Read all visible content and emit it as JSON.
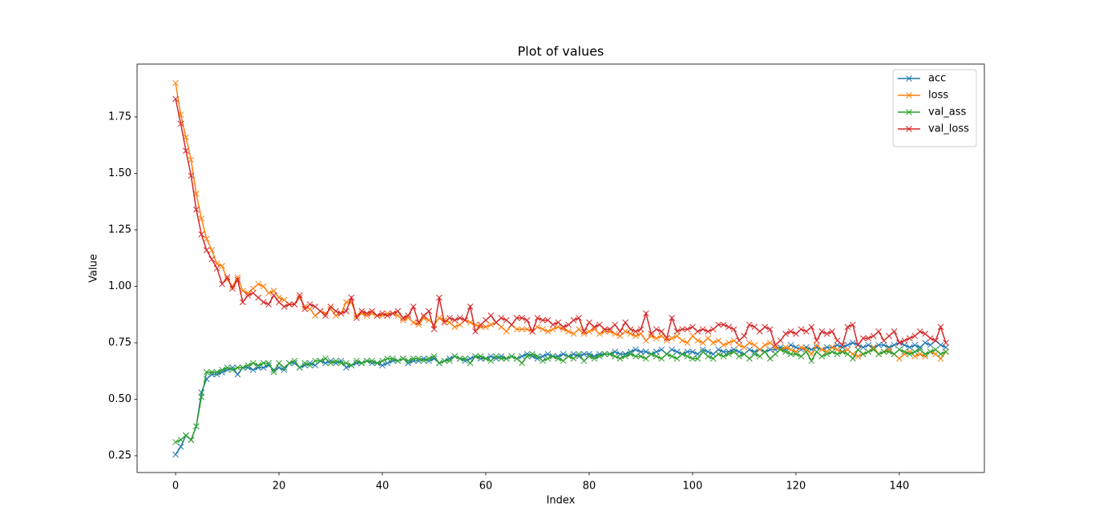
{
  "chart_data": {
    "type": "line",
    "title": "Plot of values",
    "x_label": "Index",
    "y_label": "Value",
    "x": [
      0,
      1,
      2,
      3,
      4,
      5,
      6,
      7,
      8,
      9,
      10,
      11,
      12,
      13,
      14,
      15,
      16,
      17,
      18,
      19,
      20,
      21,
      22,
      23,
      24,
      25,
      26,
      27,
      28,
      29,
      30,
      31,
      32,
      33,
      34,
      35,
      36,
      37,
      38,
      39,
      40,
      41,
      42,
      43,
      44,
      45,
      46,
      47,
      48,
      49,
      50,
      51,
      52,
      53,
      54,
      55,
      56,
      57,
      58,
      59,
      60,
      61,
      62,
      63,
      64,
      65,
      66,
      67,
      68,
      69,
      70,
      71,
      72,
      73,
      74,
      75,
      76,
      77,
      78,
      79,
      80,
      81,
      82,
      83,
      84,
      85,
      86,
      87,
      88,
      89,
      90,
      91,
      92,
      93,
      94,
      95,
      96,
      97,
      98,
      99,
      100,
      101,
      102,
      103,
      104,
      105,
      106,
      107,
      108,
      109,
      110,
      111,
      112,
      113,
      114,
      115,
      116,
      117,
      118,
      119,
      120,
      121,
      122,
      123,
      124,
      125,
      126,
      127,
      128,
      129,
      130,
      131,
      132,
      133,
      134,
      135,
      136,
      137,
      138,
      139,
      140,
      141,
      142,
      143,
      144,
      145,
      146,
      147,
      148,
      149
    ],
    "series": [
      {
        "name": "acc",
        "color": "#1f77b4",
        "values": [
          0.255,
          0.29,
          0.34,
          0.32,
          0.38,
          0.53,
          0.59,
          0.61,
          0.61,
          0.62,
          0.63,
          0.64,
          0.61,
          0.64,
          0.64,
          0.63,
          0.64,
          0.64,
          0.65,
          0.63,
          0.64,
          0.63,
          0.66,
          0.66,
          0.64,
          0.65,
          0.66,
          0.65,
          0.67,
          0.66,
          0.67,
          0.66,
          0.67,
          0.64,
          0.65,
          0.66,
          0.66,
          0.67,
          0.66,
          0.66,
          0.65,
          0.66,
          0.67,
          0.67,
          0.68,
          0.66,
          0.67,
          0.67,
          0.68,
          0.67,
          0.68,
          0.66,
          0.67,
          0.68,
          0.69,
          0.68,
          0.67,
          0.68,
          0.69,
          0.68,
          0.68,
          0.69,
          0.68,
          0.69,
          0.68,
          0.69,
          0.68,
          0.69,
          0.7,
          0.69,
          0.68,
          0.69,
          0.7,
          0.69,
          0.69,
          0.7,
          0.69,
          0.7,
          0.69,
          0.7,
          0.7,
          0.69,
          0.7,
          0.7,
          0.7,
          0.71,
          0.7,
          0.7,
          0.71,
          0.72,
          0.71,
          0.71,
          0.7,
          0.71,
          0.72,
          0.7,
          0.72,
          0.71,
          0.7,
          0.71,
          0.71,
          0.7,
          0.72,
          0.71,
          0.7,
          0.72,
          0.71,
          0.71,
          0.72,
          0.71,
          0.7,
          0.72,
          0.71,
          0.72,
          0.71,
          0.72,
          0.72,
          0.73,
          0.72,
          0.74,
          0.73,
          0.72,
          0.73,
          0.72,
          0.73,
          0.72,
          0.73,
          0.73,
          0.74,
          0.73,
          0.74,
          0.75,
          0.74,
          0.73,
          0.74,
          0.73,
          0.74,
          0.74,
          0.73,
          0.74,
          0.75,
          0.74,
          0.73,
          0.74,
          0.73,
          0.75,
          0.74,
          0.76,
          0.74,
          0.73
        ]
      },
      {
        "name": "loss",
        "color": "#ff7f0e",
        "values": [
          1.9,
          1.76,
          1.66,
          1.56,
          1.41,
          1.3,
          1.21,
          1.16,
          1.1,
          1.09,
          1.03,
          1.0,
          1.04,
          0.98,
          0.97,
          0.99,
          1.01,
          1.0,
          0.97,
          0.98,
          0.95,
          0.94,
          0.92,
          0.92,
          0.95,
          0.91,
          0.9,
          0.87,
          0.89,
          0.88,
          0.9,
          0.87,
          0.88,
          0.93,
          0.93,
          0.87,
          0.88,
          0.87,
          0.88,
          0.87,
          0.87,
          0.88,
          0.88,
          0.87,
          0.85,
          0.86,
          0.84,
          0.83,
          0.86,
          0.85,
          0.83,
          0.86,
          0.85,
          0.84,
          0.82,
          0.83,
          0.85,
          0.84,
          0.83,
          0.82,
          0.82,
          0.83,
          0.84,
          0.82,
          0.8,
          0.83,
          0.81,
          0.81,
          0.81,
          0.8,
          0.82,
          0.81,
          0.8,
          0.81,
          0.82,
          0.81,
          0.8,
          0.79,
          0.81,
          0.79,
          0.8,
          0.81,
          0.79,
          0.8,
          0.8,
          0.79,
          0.78,
          0.8,
          0.79,
          0.78,
          0.79,
          0.76,
          0.78,
          0.77,
          0.78,
          0.76,
          0.77,
          0.78,
          0.76,
          0.75,
          0.78,
          0.76,
          0.75,
          0.77,
          0.75,
          0.76,
          0.74,
          0.75,
          0.76,
          0.74,
          0.73,
          0.75,
          0.74,
          0.72,
          0.74,
          0.75,
          0.73,
          0.72,
          0.73,
          0.72,
          0.71,
          0.73,
          0.72,
          0.7,
          0.74,
          0.72,
          0.71,
          0.73,
          0.72,
          0.71,
          0.72,
          0.7,
          0.69,
          0.7,
          0.71,
          0.73,
          0.7,
          0.71,
          0.72,
          0.7,
          0.68,
          0.7,
          0.71,
          0.69,
          0.7,
          0.69,
          0.71,
          0.7,
          0.68,
          0.71
        ]
      },
      {
        "name": "val_ass",
        "color": "#2ca02c",
        "values": [
          0.31,
          0.32,
          0.34,
          0.32,
          0.38,
          0.51,
          0.62,
          0.62,
          0.62,
          0.63,
          0.64,
          0.63,
          0.64,
          0.64,
          0.65,
          0.66,
          0.65,
          0.66,
          0.66,
          0.62,
          0.66,
          0.64,
          0.66,
          0.67,
          0.64,
          0.66,
          0.65,
          0.67,
          0.67,
          0.68,
          0.66,
          0.67,
          0.66,
          0.66,
          0.65,
          0.67,
          0.66,
          0.67,
          0.67,
          0.66,
          0.67,
          0.68,
          0.68,
          0.67,
          0.68,
          0.67,
          0.68,
          0.68,
          0.67,
          0.68,
          0.69,
          0.66,
          0.67,
          0.67,
          0.69,
          0.68,
          0.68,
          0.66,
          0.69,
          0.69,
          0.68,
          0.67,
          0.69,
          0.68,
          0.68,
          0.69,
          0.68,
          0.66,
          0.69,
          0.7,
          0.69,
          0.67,
          0.68,
          0.69,
          0.68,
          0.67,
          0.69,
          0.68,
          0.7,
          0.67,
          0.69,
          0.68,
          0.69,
          0.7,
          0.7,
          0.69,
          0.68,
          0.69,
          0.7,
          0.69,
          0.69,
          0.68,
          0.7,
          0.69,
          0.68,
          0.7,
          0.69,
          0.68,
          0.7,
          0.69,
          0.68,
          0.68,
          0.71,
          0.69,
          0.68,
          0.7,
          0.69,
          0.7,
          0.71,
          0.69,
          0.7,
          0.68,
          0.7,
          0.69,
          0.71,
          0.68,
          0.7,
          0.72,
          0.71,
          0.7,
          0.7,
          0.69,
          0.71,
          0.67,
          0.71,
          0.69,
          0.7,
          0.71,
          0.7,
          0.71,
          0.7,
          0.68,
          0.72,
          0.7,
          0.71,
          0.72,
          0.7,
          0.71,
          0.71,
          0.7,
          0.72,
          0.71,
          0.7,
          0.71,
          0.72,
          0.7,
          0.71,
          0.72,
          0.7,
          0.71
        ]
      },
      {
        "name": "val_loss",
        "color": "#d62728",
        "values": [
          1.83,
          1.72,
          1.6,
          1.49,
          1.34,
          1.23,
          1.16,
          1.12,
          1.08,
          1.01,
          1.04,
          0.99,
          1.03,
          0.93,
          0.96,
          0.97,
          0.95,
          0.93,
          0.92,
          0.96,
          0.93,
          0.91,
          0.92,
          0.92,
          0.96,
          0.9,
          0.92,
          0.91,
          0.89,
          0.87,
          0.91,
          0.89,
          0.88,
          0.89,
          0.95,
          0.86,
          0.89,
          0.88,
          0.89,
          0.87,
          0.88,
          0.87,
          0.88,
          0.89,
          0.86,
          0.87,
          0.91,
          0.84,
          0.87,
          0.89,
          0.81,
          0.95,
          0.84,
          0.86,
          0.85,
          0.86,
          0.85,
          0.91,
          0.8,
          0.83,
          0.85,
          0.87,
          0.84,
          0.86,
          0.85,
          0.83,
          0.86,
          0.86,
          0.85,
          0.8,
          0.86,
          0.85,
          0.85,
          0.83,
          0.84,
          0.82,
          0.83,
          0.85,
          0.86,
          0.8,
          0.84,
          0.82,
          0.83,
          0.81,
          0.81,
          0.83,
          0.8,
          0.84,
          0.81,
          0.8,
          0.81,
          0.88,
          0.79,
          0.81,
          0.8,
          0.77,
          0.86,
          0.8,
          0.81,
          0.81,
          0.82,
          0.8,
          0.81,
          0.8,
          0.81,
          0.83,
          0.83,
          0.82,
          0.81,
          0.76,
          0.78,
          0.83,
          0.82,
          0.8,
          0.82,
          0.81,
          0.74,
          0.76,
          0.79,
          0.8,
          0.79,
          0.81,
          0.8,
          0.82,
          0.76,
          0.8,
          0.79,
          0.8,
          0.76,
          0.74,
          0.82,
          0.83,
          0.74,
          0.77,
          0.77,
          0.78,
          0.8,
          0.76,
          0.78,
          0.8,
          0.75,
          0.76,
          0.77,
          0.78,
          0.8,
          0.79,
          0.77,
          0.76,
          0.82,
          0.75
        ]
      }
    ],
    "xlim": [
      -7.45,
      156.45
    ],
    "xticks": [
      0,
      20,
      40,
      60,
      80,
      100,
      120,
      140
    ],
    "ylim": [
      0.1755,
      1.984
    ],
    "yticks": [
      0.25,
      {
        "value": 0.5,
        "label": "0.50"
      },
      0.75,
      {
        "value": 1.0,
        "label": "1.00"
      },
      1.25,
      {
        "value": 1.5,
        "label": "1.50"
      },
      1.75
    ],
    "marker": "x",
    "legend": "upper right",
    "grid": false
  }
}
